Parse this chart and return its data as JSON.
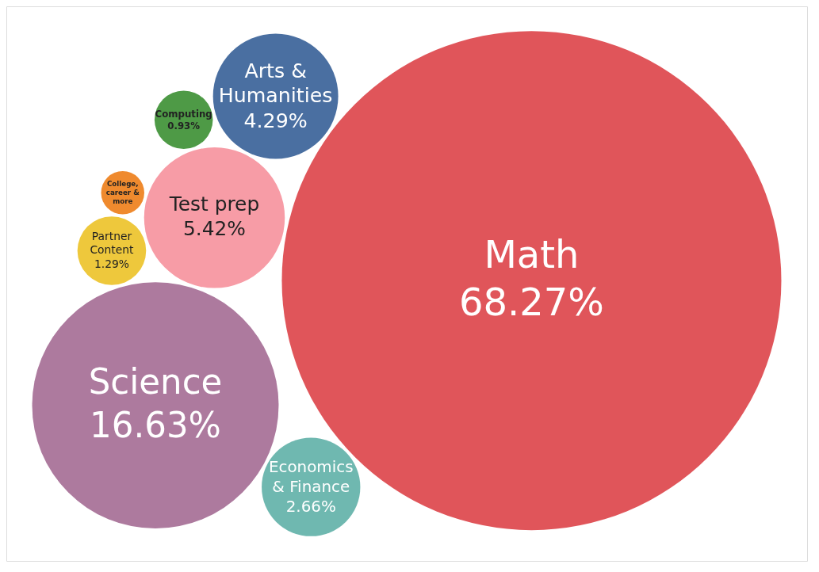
{
  "chart_data": {
    "type": "other",
    "categories": [
      "Math",
      "Science",
      "Test prep",
      "Arts & Humanities",
      "Economics & Finance",
      "Partner Content",
      "Computing",
      "College, career & more"
    ],
    "values": [
      68.27,
      16.63,
      5.42,
      4.29,
      2.66,
      1.29,
      0.93,
      null
    ],
    "value_labels": [
      "68.27%",
      "16.63%",
      "5.42%",
      "4.29%",
      "2.66%",
      "1.29%",
      "0.93%",
      null
    ],
    "colors": [
      "#e0555a",
      "#ad7a9e",
      "#f79ca6",
      "#4a6fa1",
      "#6fb8b0",
      "#eec83c",
      "#4e9a46",
      "#ef8a2e"
    ]
  }
}
